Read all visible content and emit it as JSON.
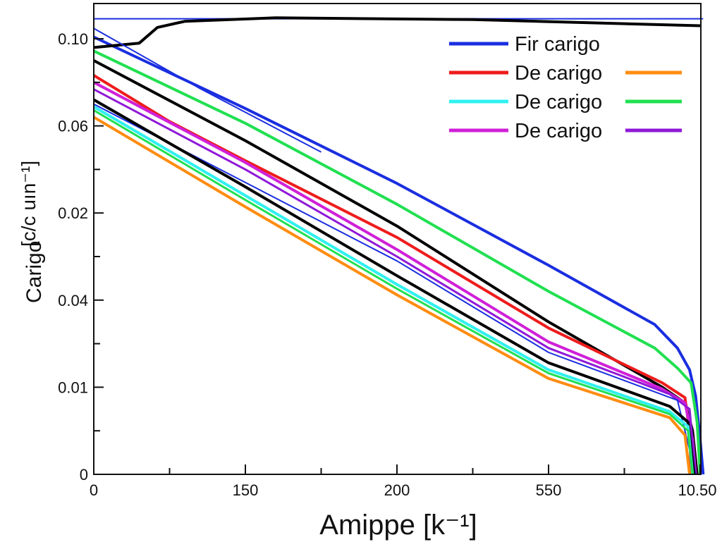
{
  "chart_data": {
    "type": "line",
    "xlabel": "Amippe [k⁻¹]",
    "ylabel": "Carigo",
    "ylabel_unit": "[c/c uın⁻¹]",
    "x_ticks": [
      {
        "label": "0",
        "pos": 0
      },
      {
        "label": "150",
        "pos": 1
      },
      {
        "label": "200",
        "pos": 2
      },
      {
        "label": "550",
        "pos": 3
      },
      {
        "label": "10.50",
        "pos": 4
      }
    ],
    "y_ticks": [
      {
        "label": "0",
        "pos": 0
      },
      {
        "label": "0.01",
        "pos": 1
      },
      {
        "label": "0.04",
        "pos": 2
      },
      {
        "label": "0.02",
        "pos": 3
      },
      {
        "label": "0.06",
        "pos": 4
      },
      {
        "label": "0.10",
        "pos": 5
      }
    ],
    "xlim": [
      0,
      4.02
    ],
    "ylim": [
      0,
      5.4
    ],
    "grid": false,
    "legend_placement": "top-right",
    "legend": [
      {
        "label": "Fir carigo",
        "color": "#1a2ee0"
      },
      {
        "label": "De carigo",
        "color": "#ee1c1c",
        "color2": "#ff8c10"
      },
      {
        "label": "De carigo",
        "color": "#30f0f0",
        "color2": "#20e050"
      },
      {
        "label": "De carigo",
        "color": "#d020d8",
        "color2": "#9018d8"
      }
    ],
    "series": [
      {
        "name": "Fir carigo",
        "color": "#1a2ee0",
        "width": 4,
        "points": [
          [
            0,
            5.02
          ],
          [
            1,
            4.2
          ],
          [
            2,
            3.34
          ],
          [
            3,
            2.4
          ],
          [
            3.7,
            1.72
          ],
          [
            3.85,
            1.45
          ],
          [
            3.93,
            1.2
          ],
          [
            3.97,
            0.9
          ],
          [
            4.0,
            0.4
          ],
          [
            4.02,
            0
          ]
        ]
      },
      {
        "color": "#1a2ee0",
        "width": 2,
        "points": [
          [
            0,
            5.23
          ],
          [
            2,
            5.23
          ],
          [
            4.02,
            5.23
          ]
        ]
      },
      {
        "color": "#000000",
        "width": 4,
        "points": [
          [
            0,
            4.9
          ],
          [
            0.3,
            4.95
          ],
          [
            0.42,
            5.13
          ],
          [
            0.6,
            5.2
          ],
          [
            1.2,
            5.24
          ],
          [
            2.5,
            5.22
          ],
          [
            4.0,
            5.15
          ]
        ]
      },
      {
        "name": "De carigo",
        "color": "#20e050",
        "width": 4,
        "points": [
          [
            0,
            4.86
          ],
          [
            1,
            4.03
          ],
          [
            2,
            3.1
          ],
          [
            3,
            2.1
          ],
          [
            3.7,
            1.45
          ],
          [
            3.85,
            1.22
          ],
          [
            3.94,
            1.05
          ],
          [
            3.98,
            0.6
          ],
          [
            4.0,
            0
          ]
        ]
      },
      {
        "color": "#000000",
        "width": 4,
        "points": [
          [
            0,
            4.75
          ],
          [
            1,
            3.83
          ],
          [
            2,
            2.85
          ],
          [
            3,
            1.75
          ],
          [
            3.75,
            1.0
          ],
          [
            3.9,
            0.82
          ],
          [
            3.95,
            0.5
          ],
          [
            3.98,
            0
          ]
        ]
      },
      {
        "name": "De carigo",
        "color": "#ee1c1c",
        "width": 4,
        "points": [
          [
            0,
            4.58
          ],
          [
            0.5,
            4.05
          ],
          [
            1,
            3.6
          ],
          [
            2,
            2.72
          ],
          [
            3,
            1.68
          ],
          [
            3.75,
            1.05
          ],
          [
            3.9,
            0.88
          ],
          [
            3.93,
            0.5
          ],
          [
            3.94,
            0
          ]
        ]
      },
      {
        "name": "De carigo",
        "color": "#d020d8",
        "width": 4,
        "points": [
          [
            0,
            4.5
          ],
          [
            1,
            3.58
          ],
          [
            2,
            2.58
          ],
          [
            3,
            1.52
          ],
          [
            3.75,
            0.98
          ],
          [
            3.9,
            0.82
          ],
          [
            3.95,
            0.4
          ],
          [
            3.97,
            0
          ]
        ]
      },
      {
        "color": "#9018d8",
        "width": 3,
        "points": [
          [
            0,
            4.42
          ],
          [
            1,
            3.5
          ],
          [
            2,
            2.5
          ],
          [
            3,
            1.45
          ],
          [
            3.8,
            0.92
          ],
          [
            3.93,
            0.75
          ],
          [
            3.97,
            0
          ]
        ]
      },
      {
        "color": "#1a2ee0",
        "width": 2,
        "points": [
          [
            0,
            5.12
          ],
          [
            0.7,
            4.43
          ],
          [
            1.5,
            3.7
          ]
        ]
      },
      {
        "color": "#1a2ee0",
        "width": 2,
        "points": [
          [
            0,
            4.25
          ],
          [
            1,
            3.35
          ],
          [
            2,
            2.45
          ],
          [
            3,
            1.4
          ],
          [
            3.85,
            0.85
          ],
          [
            3.97,
            0
          ]
        ]
      },
      {
        "color": "#000000",
        "width": 4,
        "points": [
          [
            0,
            4.3
          ],
          [
            1,
            3.3
          ],
          [
            2,
            2.28
          ],
          [
            3,
            1.28
          ],
          [
            3.8,
            0.78
          ],
          [
            3.92,
            0.6
          ],
          [
            3.96,
            0
          ]
        ]
      },
      {
        "name": "De carigo",
        "color": "#30f0f0",
        "width": 4,
        "points": [
          [
            0,
            4.22
          ],
          [
            1,
            3.2
          ],
          [
            2,
            2.18
          ],
          [
            3,
            1.2
          ],
          [
            3.8,
            0.72
          ],
          [
            3.92,
            0.55
          ],
          [
            3.95,
            0
          ]
        ]
      },
      {
        "color": "#20e050",
        "width": 3,
        "points": [
          [
            0,
            4.18
          ],
          [
            1,
            3.15
          ],
          [
            2,
            2.13
          ],
          [
            3,
            1.16
          ],
          [
            3.8,
            0.69
          ],
          [
            3.92,
            0.5
          ],
          [
            3.95,
            0
          ]
        ]
      },
      {
        "name": "De carigo",
        "color": "#ff8c10",
        "width": 4,
        "points": [
          [
            0,
            4.1
          ],
          [
            1,
            3.07
          ],
          [
            2,
            2.06
          ],
          [
            3,
            1.1
          ],
          [
            3.8,
            0.65
          ],
          [
            3.9,
            0.45
          ],
          [
            3.93,
            0
          ]
        ]
      }
    ]
  }
}
